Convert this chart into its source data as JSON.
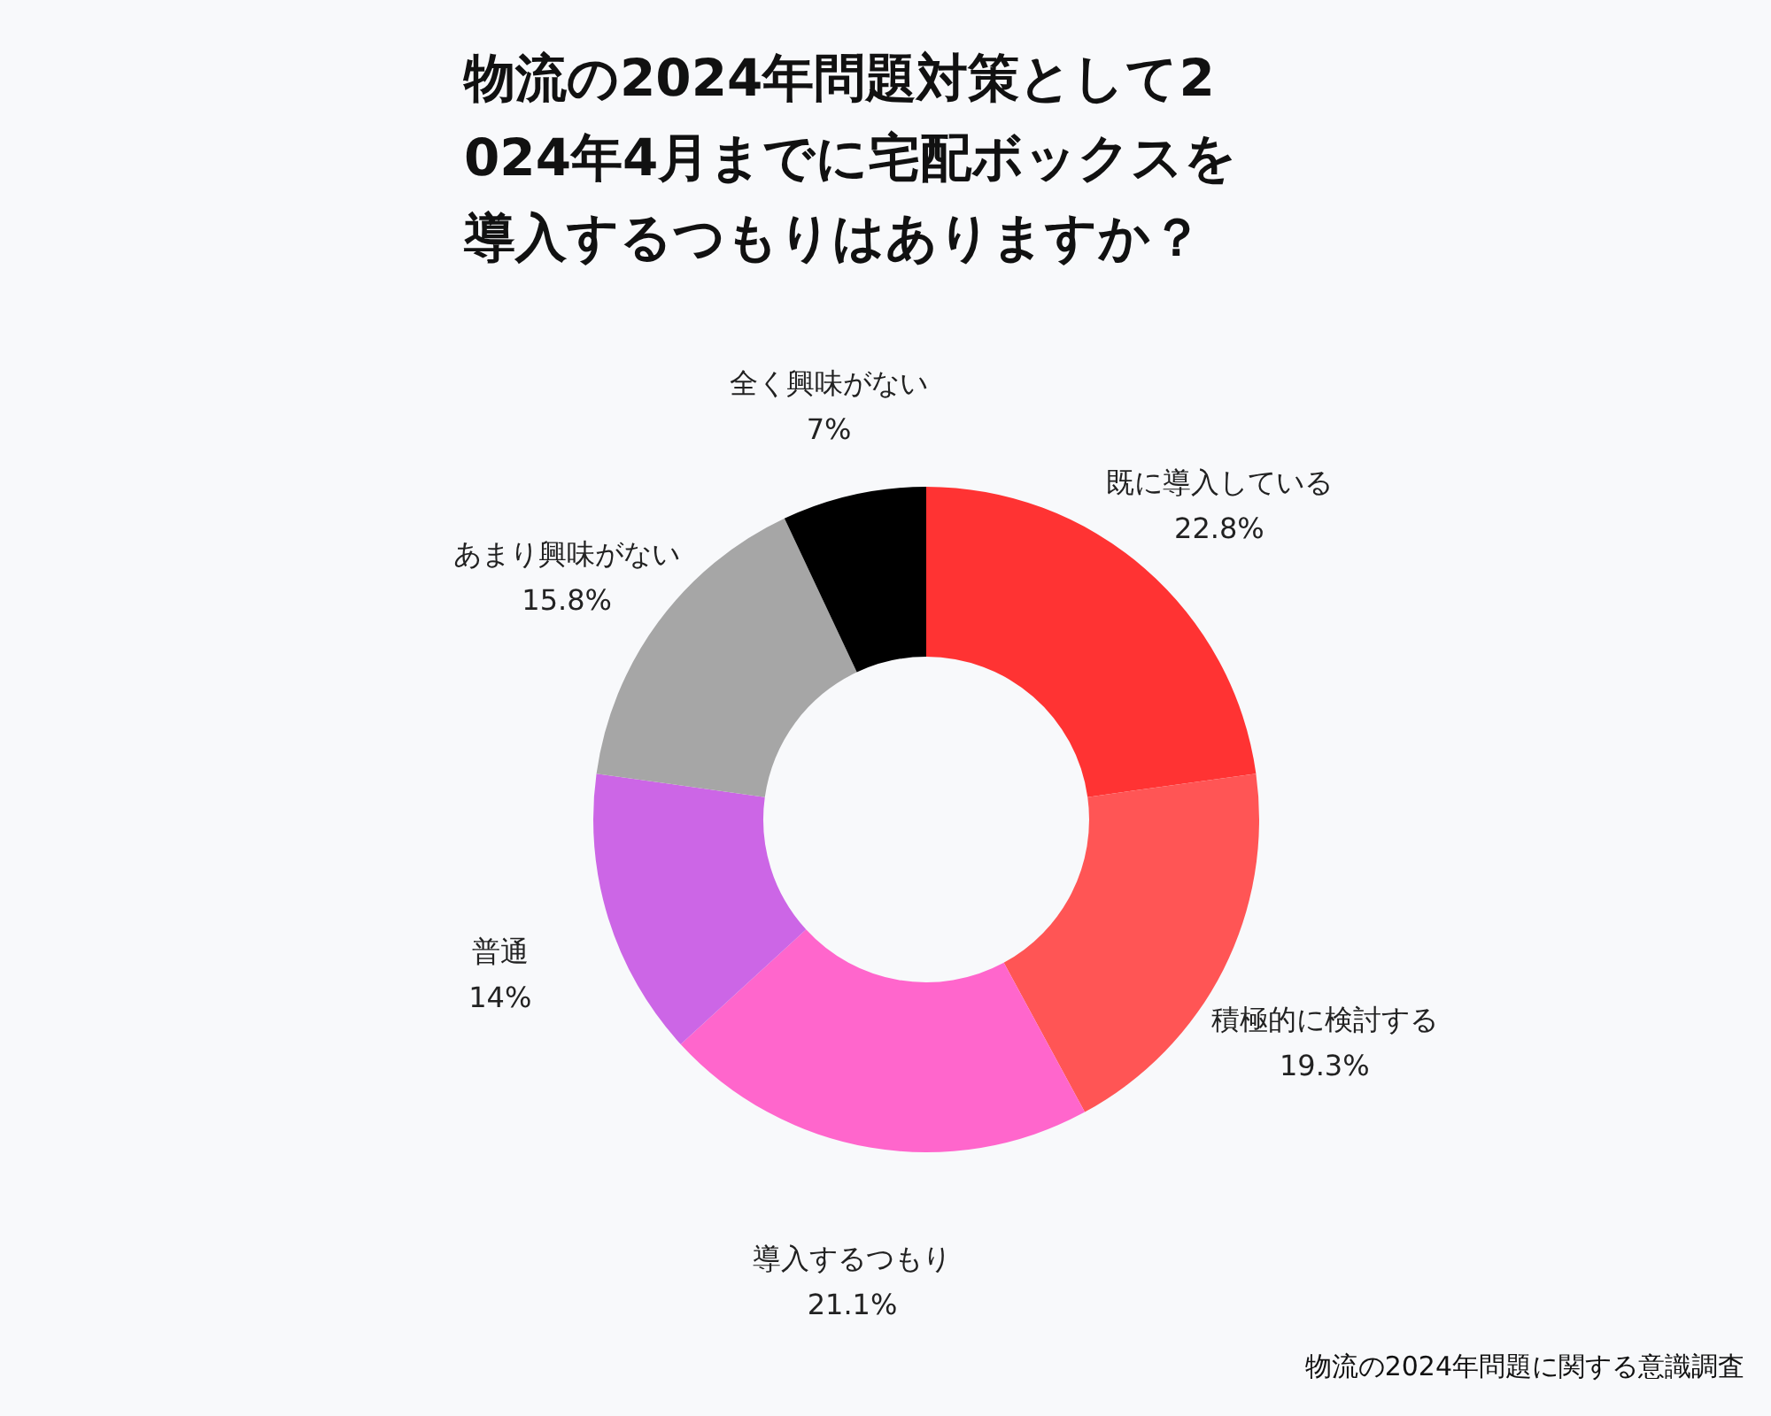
{
  "chart_data": {
    "type": "donut",
    "title": "物流の2024年問題対策として2024年4月までに宅配ボックスを導入するつもりはありますか？",
    "categories": [
      "既に導入している",
      "積極的に検討する",
      "導入するつもり",
      "普通",
      "あまり興味がない",
      "全く興味がない"
    ],
    "values": [
      22.8,
      19.3,
      21.1,
      14,
      15.8,
      7
    ],
    "value_labels": [
      "22.8%",
      "19.3%",
      "21.1%",
      "14%",
      "15.8%",
      "7%"
    ],
    "colors": [
      "#ff3333",
      "#ff5555",
      "#ff66cc",
      "#cc66e6",
      "#a6a6a6",
      "#000000"
    ],
    "annotations": [
      "物流の2024年問題に関する意識調査"
    ]
  }
}
